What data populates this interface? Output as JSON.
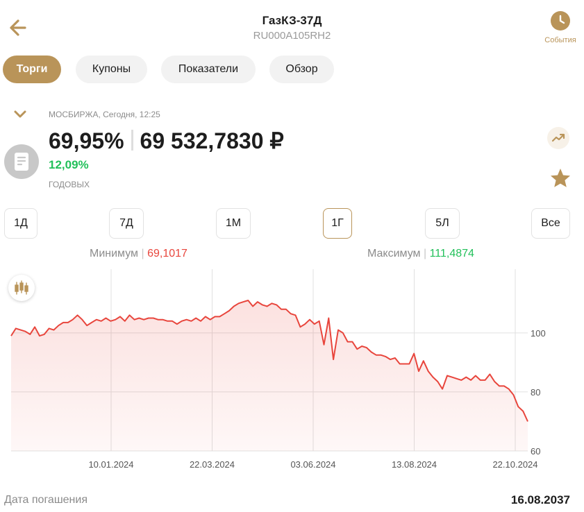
{
  "header": {
    "title": "ГазКЗ-37Д",
    "isin": "RU000A105RH2",
    "events_label": "События"
  },
  "tabs": [
    "Торги",
    "Купоны",
    "Показатели",
    "Обзор"
  ],
  "quote": {
    "exchange_time": "МОСБИРЖА, Сегодня, 12:25",
    "price_percent": "69,95%",
    "price_rub": "69 532,7830 ₽",
    "yield": "12,09%",
    "yield_label": "ГОДОВЫХ"
  },
  "periods": [
    "1Д",
    "7Д",
    "1М",
    "1Г",
    "5Л",
    "Все"
  ],
  "selected_period": "1Г",
  "stats": {
    "min_label": "Минимум",
    "min_value": "69,1017",
    "max_label": "Максимум",
    "max_value": "111,4874"
  },
  "colors": {
    "accent": "#b99459",
    "line": "#e8453c",
    "positive": "#22c05a"
  },
  "chart_data": {
    "type": "area",
    "x_ticks": [
      "10.01.2024",
      "22.03.2024",
      "03.06.2024",
      "13.08.2024",
      "22.10.2024"
    ],
    "y_ticks": [
      100,
      80,
      60
    ],
    "ylim": [
      60,
      115
    ],
    "grid": true,
    "series": [
      {
        "values": [
          99,
          101.5,
          101,
          100.5,
          99.5,
          102,
          99,
          99.5,
          101.5,
          101,
          102.5,
          103.5,
          103.5,
          104.5,
          106,
          104.5,
          102.5,
          103.5,
          104.5,
          104,
          105,
          104,
          104.5,
          105.5,
          104,
          106,
          104.5,
          105,
          104.5,
          105,
          105,
          104.5,
          104.5,
          104,
          104,
          103,
          104,
          104.5,
          104,
          105,
          104,
          105.5,
          104.5,
          105.5,
          105.5,
          106.5,
          107.5,
          109,
          110,
          110.5,
          111,
          109,
          110.5,
          109.5,
          109,
          110,
          109.5,
          108,
          108,
          106.5,
          106,
          102,
          103,
          104.5,
          103,
          104,
          96,
          105,
          91,
          101,
          100,
          97,
          97,
          94.5,
          95.5,
          95,
          93.5,
          92.5,
          92.5,
          92,
          91,
          91.5,
          89.5,
          89.5,
          89.5,
          93,
          87,
          90.5,
          87,
          85,
          83.5,
          81,
          85.5,
          85,
          84.5,
          84,
          85,
          84,
          85.5,
          84,
          84,
          86,
          83.5,
          82,
          82,
          81,
          79,
          75,
          73.5,
          70
        ]
      }
    ]
  },
  "maturity": {
    "label": "Дата погашения",
    "value": "16.08.2037"
  }
}
